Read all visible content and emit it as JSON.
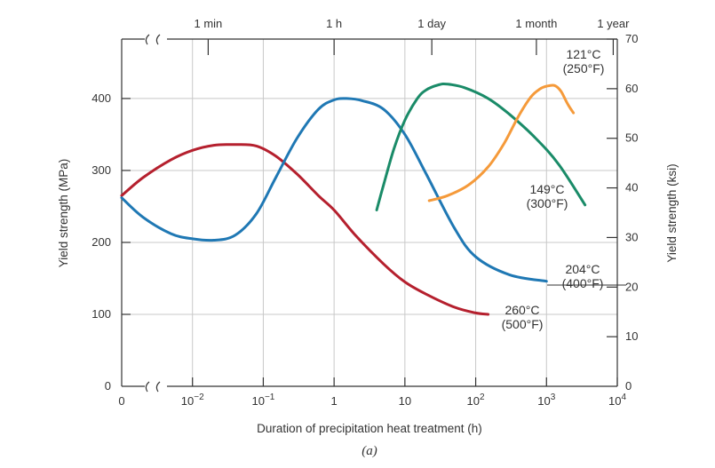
{
  "chart_data": {
    "type": "line",
    "title": "",
    "caption": "(a)",
    "xlabel": "Duration of precipitation heat treatment (h)",
    "ylabel": "Yield strength (MPa)",
    "ylabel_right": "Yield strength (ksi)",
    "x_scale": "log",
    "xlim": [
      0.001,
      10000
    ],
    "ylim": [
      0,
      482.6
    ],
    "x_ticks": [
      {
        "value": 0.01,
        "base": "10",
        "exp": "−2"
      },
      {
        "value": 0.1,
        "base": "10",
        "exp": "−1"
      },
      {
        "value": 1,
        "base": "1",
        "exp": ""
      },
      {
        "value": 10,
        "base": "10",
        "exp": ""
      },
      {
        "value": 100,
        "base": "10",
        "exp": "2"
      },
      {
        "value": 1000,
        "base": "10",
        "exp": "3"
      },
      {
        "value": 10000,
        "base": "10",
        "exp": "4"
      }
    ],
    "x_zero_label": "0",
    "y_ticks": [
      0,
      100,
      200,
      300,
      400
    ],
    "y_ticks_right": [
      0,
      10,
      20,
      30,
      40,
      50,
      60,
      70
    ],
    "ksi_to_mpa": 6.894,
    "top_ticks": [
      {
        "label": "1 min",
        "hours": 0.01667
      },
      {
        "label": "1 h",
        "hours": 1
      },
      {
        "label": "1 day",
        "hours": 24
      },
      {
        "label": "1 month",
        "hours": 720
      },
      {
        "label": "1 year",
        "hours": 8760
      }
    ],
    "series": [
      {
        "name": "260°C (500°F)",
        "label_lines": [
          "260°C",
          "(500°F)"
        ],
        "color": "#b5202e",
        "x": [
          0.001,
          0.002,
          0.005,
          0.01,
          0.02,
          0.04,
          0.08,
          0.15,
          0.3,
          0.6,
          1,
          2,
          5,
          10,
          20,
          50,
          100,
          150
        ],
        "y": [
          265,
          290,
          315,
          328,
          335,
          336,
          334,
          320,
          295,
          265,
          245,
          210,
          170,
          145,
          128,
          110,
          102,
          100
        ]
      },
      {
        "name": "204°C (400°F)",
        "label_lines": [
          "204°C",
          "(400°F)"
        ],
        "color": "#1f78b4",
        "x": [
          0.001,
          0.002,
          0.005,
          0.01,
          0.02,
          0.04,
          0.08,
          0.15,
          0.3,
          0.6,
          1,
          1.5,
          2.5,
          5,
          10,
          20,
          50,
          100,
          300,
          1000
        ],
        "y": [
          262,
          235,
          212,
          205,
          203,
          210,
          240,
          290,
          345,
          385,
          398,
          400,
          397,
          385,
          350,
          295,
          220,
          180,
          155,
          146
        ]
      },
      {
        "name": "149°C (300°F)",
        "label_lines": [
          "149°C",
          "(300°F)"
        ],
        "color": "#1a8b68",
        "x": [
          4,
          5,
          7,
          10,
          15,
          20,
          30,
          40,
          70,
          150,
          300,
          700,
          1500,
          3500
        ],
        "y": [
          245,
          280,
          330,
          370,
          400,
          412,
          419,
          420,
          415,
          400,
          378,
          345,
          308,
          252
        ]
      },
      {
        "name": "121°C (250°F)",
        "label_lines": [
          "121°C",
          "(250°F)"
        ],
        "color": "#f59a3a",
        "x": [
          22,
          40,
          80,
          150,
          250,
          400,
          600,
          800,
          1000,
          1300,
          1600,
          2000,
          2400
        ],
        "y": [
          258,
          265,
          280,
          305,
          337,
          375,
          402,
          413,
          417,
          418,
          410,
          392,
          380
        ]
      }
    ]
  }
}
